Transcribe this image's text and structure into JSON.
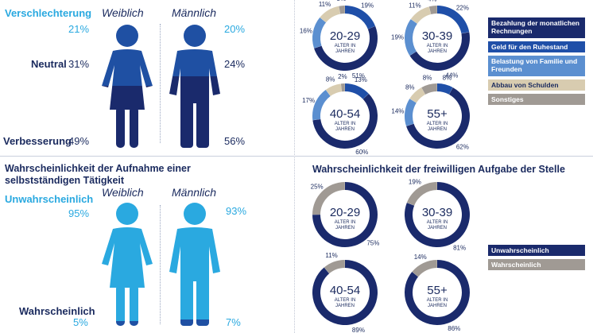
{
  "top_left": {
    "header_female": "Weiblich",
    "header_male": "Männlich",
    "rows": [
      {
        "label": "Verschlechterung",
        "female": "21%",
        "male": "20%"
      },
      {
        "label": "Neutral",
        "female": "31%",
        "male": "24%"
      },
      {
        "label": "Verbesserung",
        "female": "49%",
        "male": "56%"
      }
    ]
  },
  "bottom_left": {
    "title": "Wahrscheinlichkeit der Aufnahme einer selbstständigen Tätigkeit",
    "header_female": "Weiblich",
    "header_male": "Männlich",
    "rows": [
      {
        "label": "Unwahrscheinlich",
        "female": "95%",
        "male": "93%"
      },
      {
        "label": "Wahrscheinlich",
        "female": "5%",
        "male": "7%"
      }
    ]
  },
  "bottom_right": {
    "title": "Wahrscheinlichkeit der freiwilligen Aufgabe der Stelle"
  },
  "colors": {
    "navy": "#1a2a6c",
    "mid_blue": "#1f4fa8",
    "cyan": "#2aa9e0",
    "light_blue": "#5b8fd0",
    "beige": "#d8ccb0",
    "gray": "#a09a94",
    "female_top": "#1f50a3",
    "female_bottom": "#1a2a6c"
  },
  "chart_data": [
    {
      "type": "pie",
      "title": "",
      "legend": [
        "Bezahlung der monatlichen Rechnungen",
        "Geld für den Ruhestand",
        "Belastung von Familie und Freunden",
        "Abbau von Schulden",
        "Sonstiges"
      ],
      "legend_position": "right",
      "donuts": [
        {
          "center": "20-29",
          "sub": "ALTER IN JAHREN",
          "values": [
            51,
            19,
            16,
            11,
            3
          ],
          "labels": [
            "51%",
            "19%",
            "16%",
            "11%",
            "3%"
          ]
        },
        {
          "center": "30-39",
          "sub": "ALTER IN JAHREN",
          "values": [
            44,
            22,
            19,
            11,
            4
          ],
          "labels": [
            "44%",
            "22%",
            "19%",
            "11%",
            "4%"
          ]
        },
        {
          "center": "40-54",
          "sub": "ALTER IN JAHREN",
          "values": [
            60,
            13,
            17,
            8,
            2
          ],
          "labels": [
            "60%",
            "13%",
            "17%",
            "8%",
            "2%"
          ]
        },
        {
          "center": "55+",
          "sub": "ALTER IN JAHREN",
          "values": [
            62,
            8,
            14,
            8,
            8
          ],
          "labels": [
            "62%",
            "8%",
            "14%",
            "8%",
            "8%"
          ]
        }
      ]
    },
    {
      "type": "pie",
      "title": "Wahrscheinlichkeit der freiwilligen Aufgabe der Stelle",
      "legend": [
        "Unwahrscheinlich",
        "Wahrscheinlich"
      ],
      "legend_position": "right",
      "donuts": [
        {
          "center": "20-29",
          "sub": "ALTER IN JAHREN",
          "values": [
            75,
            25
          ],
          "labels": [
            "75%",
            "25%"
          ]
        },
        {
          "center": "30-39",
          "sub": "ALTER IN JAHREN",
          "values": [
            81,
            19
          ],
          "labels": [
            "81%",
            "19%"
          ]
        },
        {
          "center": "40-54",
          "sub": "ALTER IN JAHREN",
          "values": [
            89,
            11
          ],
          "labels": [
            "89%",
            "11%"
          ]
        },
        {
          "center": "55+",
          "sub": "ALTER IN JAHREN",
          "values": [
            86,
            14
          ],
          "labels": [
            "86%",
            "14%"
          ]
        }
      ]
    },
    {
      "type": "bar",
      "title": "",
      "categories": [
        "Weiblich",
        "Männlich"
      ],
      "series": [
        {
          "name": "Verschlechterung",
          "values": [
            21,
            20
          ]
        },
        {
          "name": "Neutral",
          "values": [
            31,
            24
          ]
        },
        {
          "name": "Verbesserung",
          "values": [
            49,
            56
          ]
        }
      ]
    },
    {
      "type": "bar",
      "title": "Wahrscheinlichkeit der Aufnahme einer selbstständigen Tätigkeit",
      "categories": [
        "Weiblich",
        "Männlich"
      ],
      "series": [
        {
          "name": "Unwahrscheinlich",
          "values": [
            95,
            93
          ]
        },
        {
          "name": "Wahrscheinlich",
          "values": [
            5,
            7
          ]
        }
      ]
    }
  ]
}
